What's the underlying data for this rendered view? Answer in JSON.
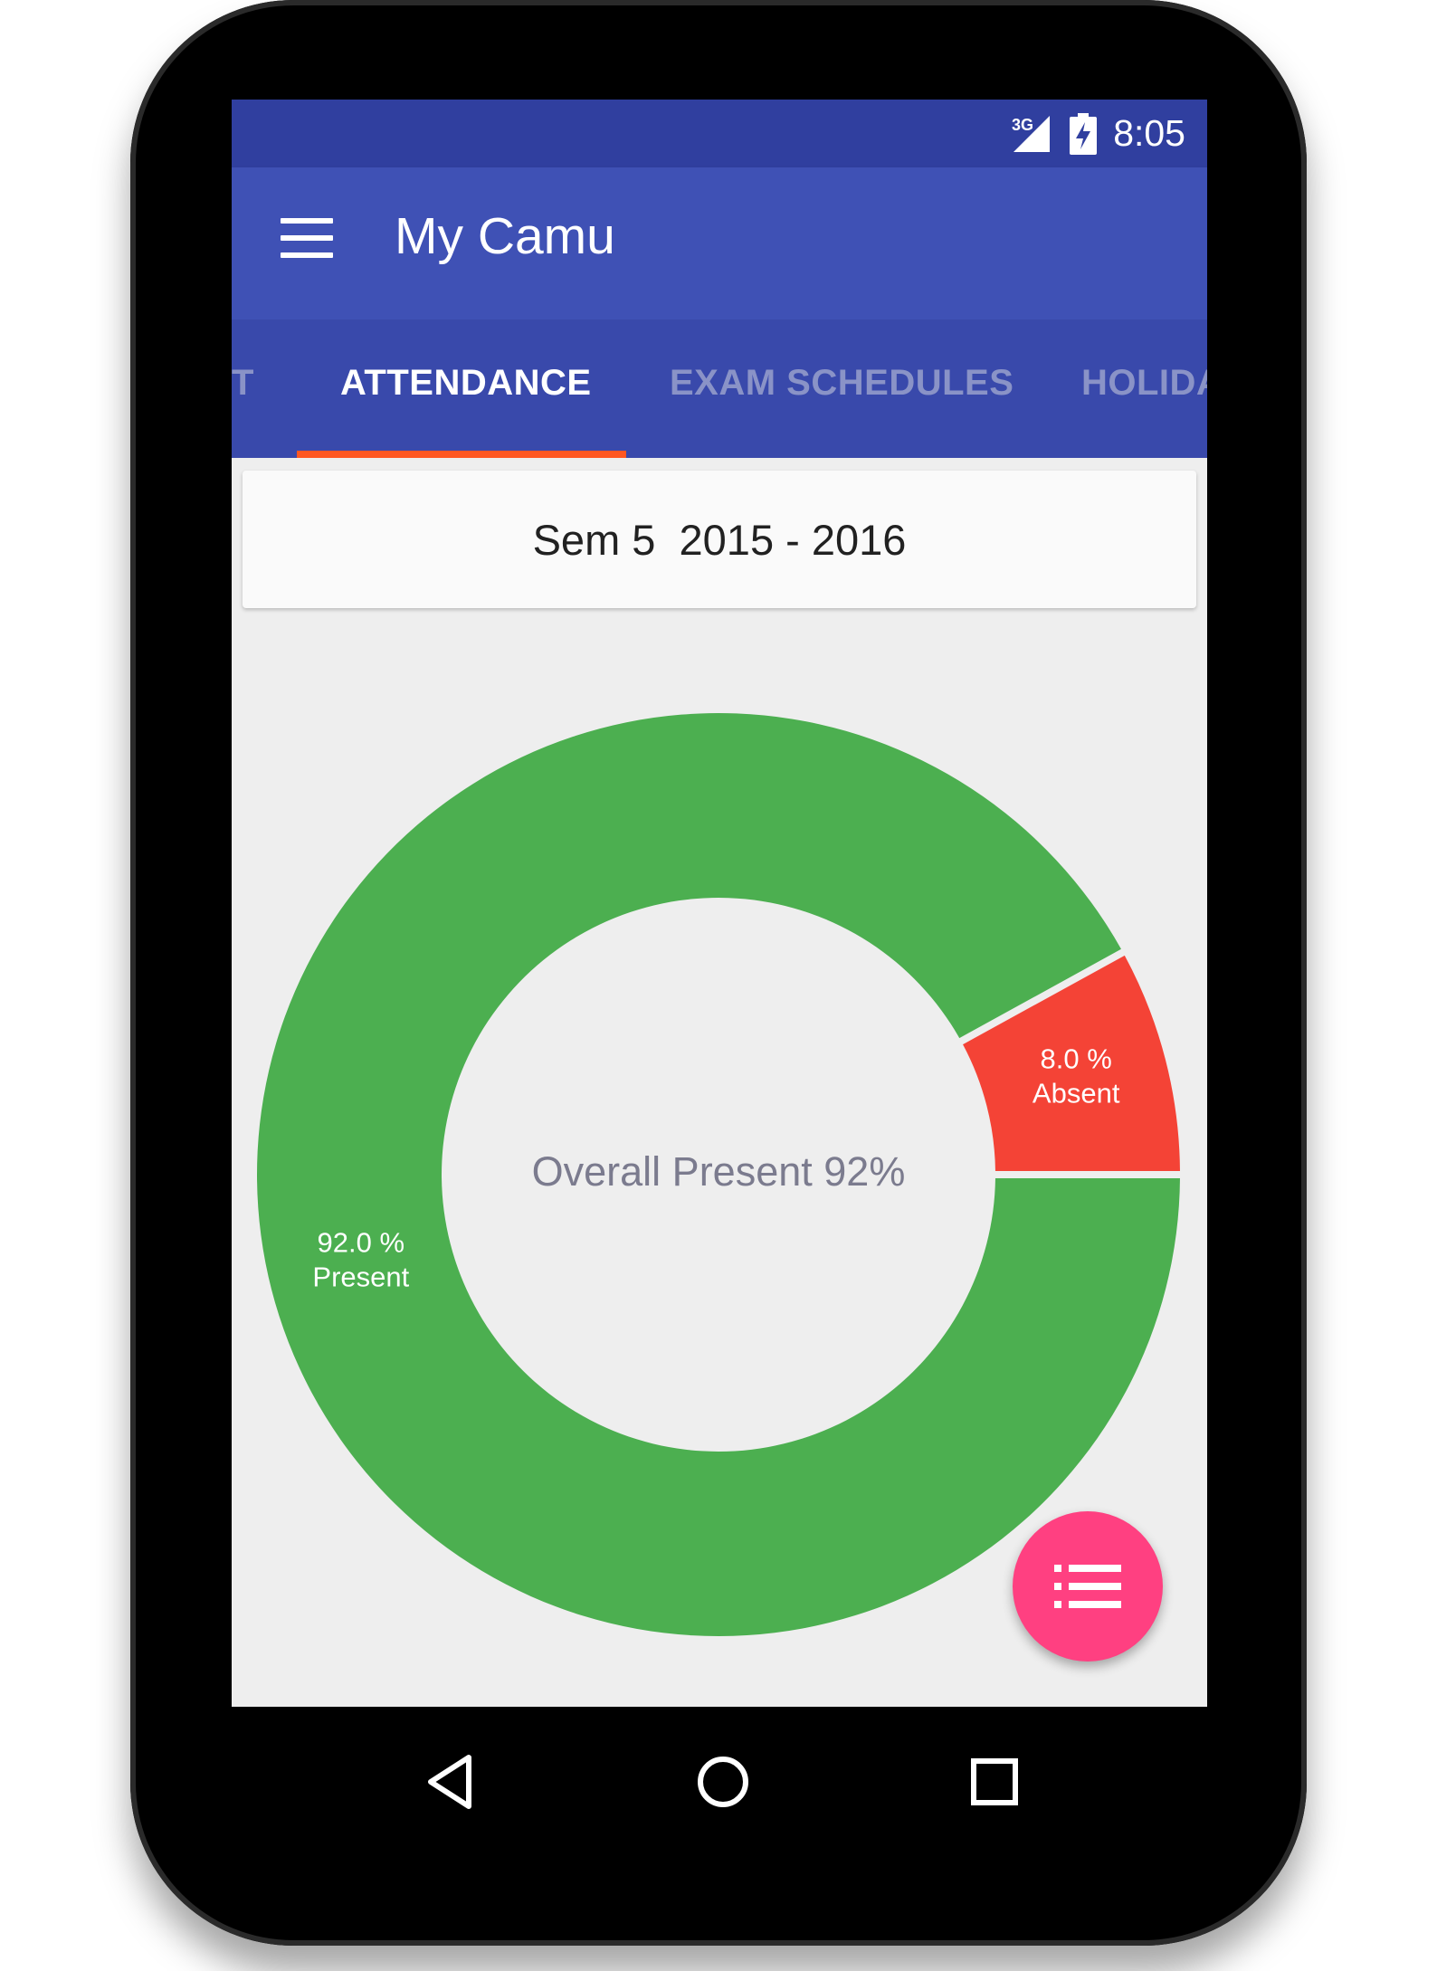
{
  "status_bar": {
    "network": "3G",
    "time": "8:05"
  },
  "app_bar": {
    "title": "My Camu"
  },
  "tabs": [
    {
      "label": "T"
    },
    {
      "label": "ATTENDANCE"
    },
    {
      "label": "EXAM SCHEDULES"
    },
    {
      "label": "HOLIDA"
    }
  ],
  "semester": {
    "label": "Sem 5  2015 - 2016"
  },
  "chart_data": {
    "type": "pie",
    "categories": [
      "Absent",
      "Present"
    ],
    "values": [
      8.0,
      92.0
    ],
    "colors": [
      "#f44336",
      "#4caf50"
    ],
    "labels": [
      {
        "value": "8.0 %",
        "name": "Absent"
      },
      {
        "value": "92.0 %",
        "name": "Present"
      }
    ],
    "center_text": "Overall Present 92%"
  },
  "icons": {
    "menu": "hamburger-menu-icon",
    "fab": "list-icon",
    "nav_back": "triangle-back-icon",
    "nav_home": "circle-home-icon",
    "nav_recents": "square-recents-icon"
  },
  "colors": {
    "status_bar": "#303f9f",
    "app_bar": "#3f51b5",
    "tab_bar": "#3949ab",
    "tab_indicator": "#ff5722",
    "fab": "#ff4081",
    "present": "#4caf50",
    "absent": "#f44336"
  }
}
